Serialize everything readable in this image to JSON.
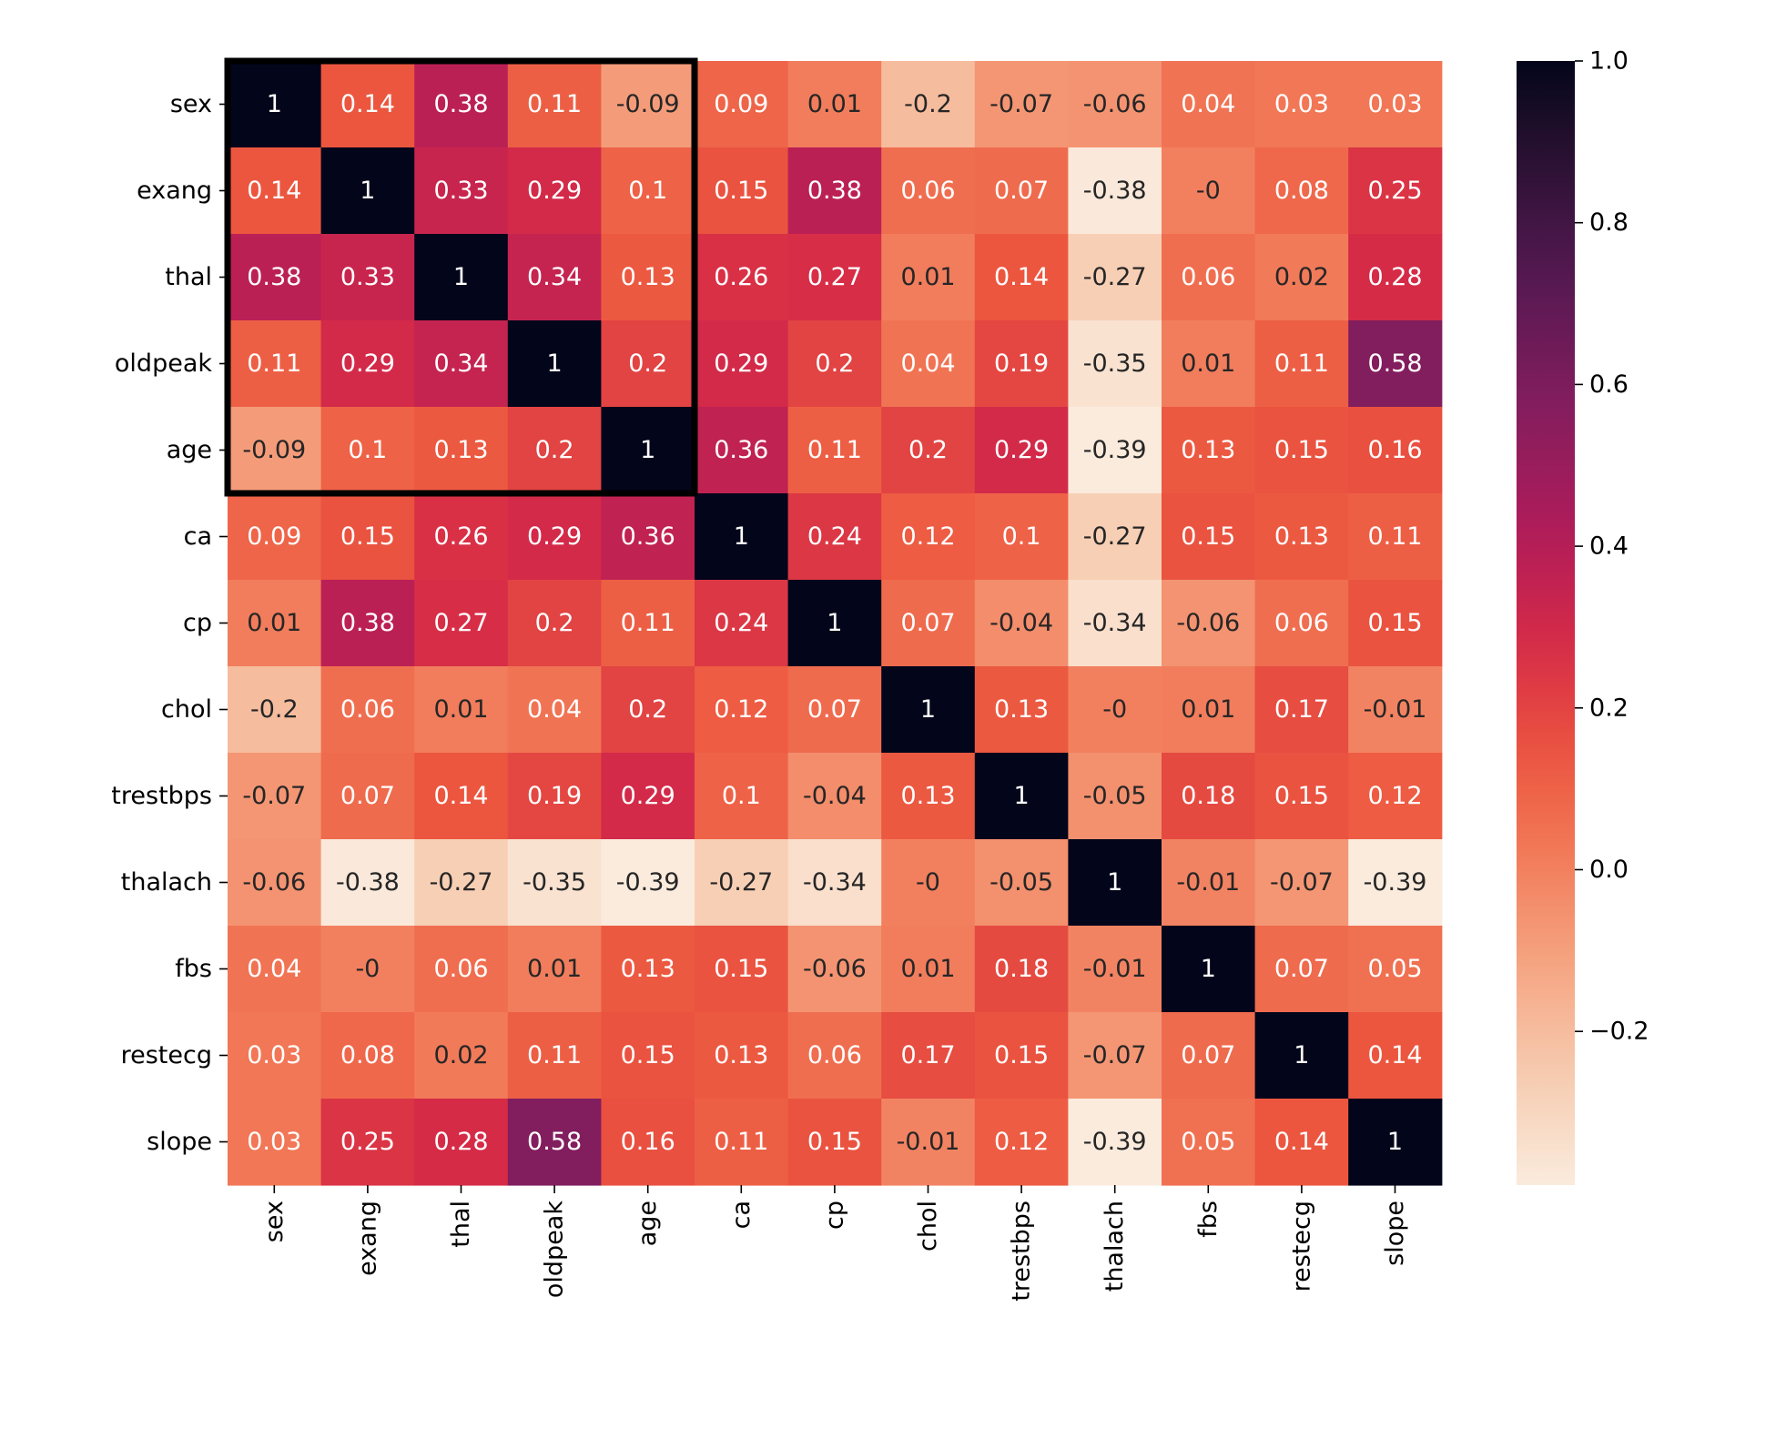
{
  "chart_data": {
    "type": "heatmap",
    "title": "",
    "xlabel": "",
    "ylabel": "",
    "row_labels": [
      "sex",
      "exang",
      "thal",
      "oldpeak",
      "age",
      "ca",
      "cp",
      "chol",
      "trestbps",
      "thalach",
      "fbs",
      "restecg",
      "slope"
    ],
    "col_labels": [
      "sex",
      "exang",
      "thal",
      "oldpeak",
      "age",
      "ca",
      "cp",
      "chol",
      "trestbps",
      "thalach",
      "fbs",
      "restecg",
      "slope"
    ],
    "values": [
      [
        1,
        0.14,
        0.38,
        0.11,
        -0.09,
        0.09,
        0.01,
        -0.2,
        -0.07,
        -0.06,
        0.04,
        0.03,
        0.03
      ],
      [
        0.14,
        1,
        0.33,
        0.29,
        0.1,
        0.15,
        0.38,
        0.06,
        0.07,
        -0.38,
        0,
        0.08,
        0.25
      ],
      [
        0.38,
        0.33,
        1,
        0.34,
        0.13,
        0.26,
        0.27,
        0.01,
        0.14,
        -0.27,
        0.06,
        0.02,
        0.28
      ],
      [
        0.11,
        0.29,
        0.34,
        1,
        0.2,
        0.29,
        0.2,
        0.04,
        0.19,
        -0.35,
        0.01,
        0.11,
        0.58
      ],
      [
        -0.09,
        0.1,
        0.13,
        0.2,
        1,
        0.36,
        0.11,
        0.2,
        0.29,
        -0.39,
        0.13,
        0.15,
        0.16
      ],
      [
        0.09,
        0.15,
        0.26,
        0.29,
        0.36,
        1,
        0.24,
        0.12,
        0.1,
        -0.27,
        0.15,
        0.13,
        0.11
      ],
      [
        0.01,
        0.38,
        0.27,
        0.2,
        0.11,
        0.24,
        1,
        0.07,
        -0.04,
        -0.34,
        -0.06,
        0.06,
        0.15
      ],
      [
        -0.2,
        0.06,
        0.01,
        0.04,
        0.2,
        0.12,
        0.07,
        1,
        0.13,
        0,
        0.01,
        0.17,
        -0.01
      ],
      [
        -0.07,
        0.07,
        0.14,
        0.19,
        0.29,
        0.1,
        -0.04,
        0.13,
        1,
        -0.05,
        0.18,
        0.15,
        0.12
      ],
      [
        -0.06,
        -0.38,
        -0.27,
        -0.35,
        -0.39,
        -0.27,
        -0.34,
        0,
        -0.05,
        1,
        -0.01,
        -0.07,
        -0.39
      ],
      [
        0.04,
        0,
        0.06,
        0.01,
        0.13,
        0.15,
        -0.06,
        0.01,
        0.18,
        -0.01,
        1,
        0.07,
        0.05
      ],
      [
        0.03,
        0.08,
        0.02,
        0.11,
        0.15,
        0.13,
        0.06,
        0.17,
        0.15,
        -0.07,
        0.07,
        1,
        0.14
      ],
      [
        0.03,
        0.25,
        0.28,
        0.58,
        0.16,
        0.11,
        0.15,
        -0.01,
        0.12,
        -0.39,
        0.05,
        0.14,
        1
      ]
    ],
    "vmin": -0.39,
    "vmax": 1.0,
    "colormap": "rocket_r",
    "colorbar": {
      "ticks": [
        1.0,
        0.8,
        0.6,
        0.4,
        0.2,
        0.0,
        -0.2
      ],
      "tick_labels": [
        "1.0",
        "0.8",
        "0.6",
        "0.4",
        "0.2",
        "0.0",
        "−0.2"
      ],
      "location": "right"
    },
    "highlight_box": {
      "rows": [
        0,
        4
      ],
      "cols": [
        0,
        4
      ],
      "color": "#000000"
    },
    "grid": false
  }
}
